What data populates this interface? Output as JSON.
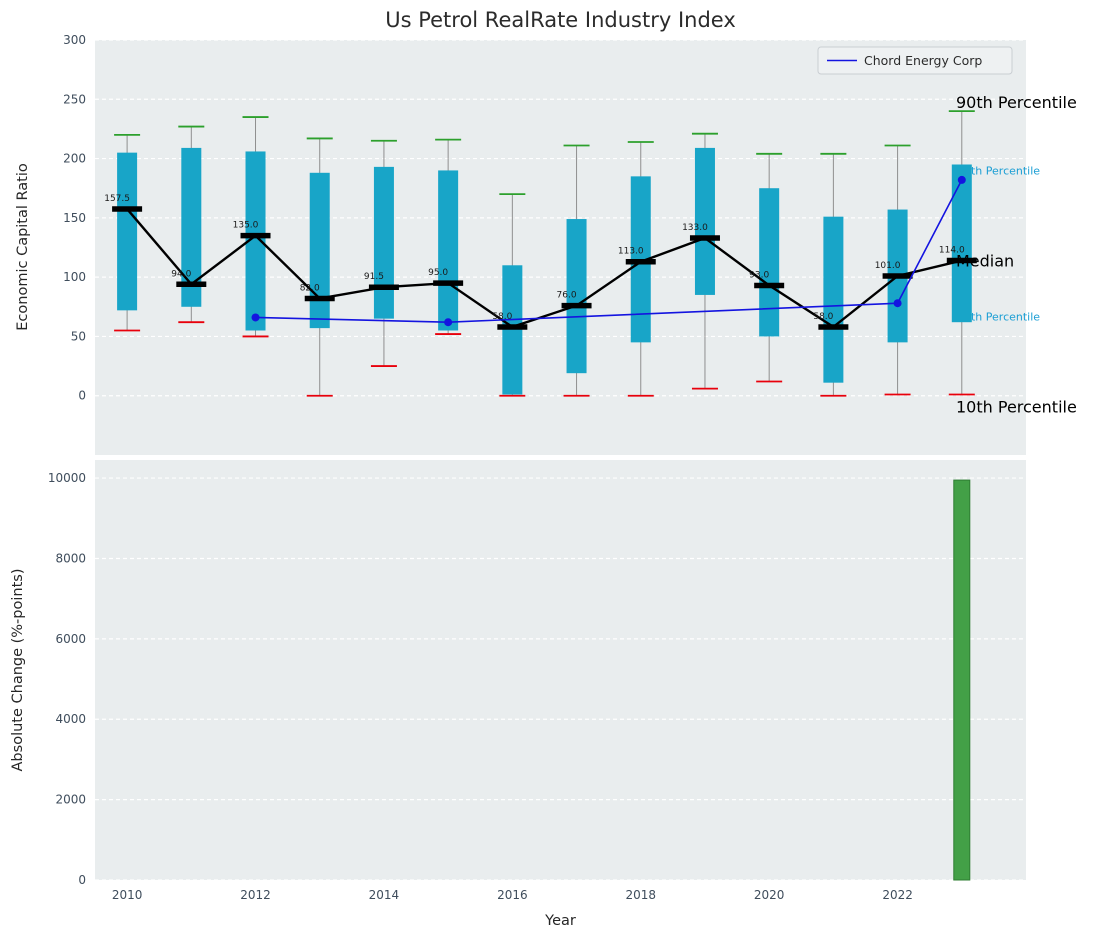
{
  "title": "Us Petrol RealRate Industry Index",
  "colors": {
    "axes_bg": "#e9edee",
    "grid": "#ffffff",
    "box": "#18a5c8",
    "cap90": "#2ca02c",
    "cap10": "#e8000b",
    "median": "#000000",
    "company": "#1414e0",
    "bar": "#43a047",
    "bar_edge": "#2e7d32",
    "whisker": "#8f8f8f",
    "tick": "#3f4d5c",
    "cyan_text": "#1a9ed4",
    "text": "#262626"
  },
  "chart_data": [
    {
      "type": "boxplot+line",
      "title": "Us Petrol RealRate Industry Index",
      "ylabel": "Economic Capital Ratio",
      "ylim": [
        -50,
        300
      ],
      "yticks": [
        0,
        50,
        100,
        150,
        200,
        250,
        300
      ],
      "xlim": [
        2009.5,
        2024
      ],
      "xticks": [
        2010,
        2012,
        2014,
        2016,
        2018,
        2020,
        2022
      ],
      "grid": true,
      "legend": "Chord Energy Corp",
      "legend_position": "upper right",
      "years": [
        2010,
        2011,
        2012,
        2013,
        2014,
        2015,
        2016,
        2017,
        2018,
        2019,
        2020,
        2021,
        2022,
        2023
      ],
      "p10": [
        55,
        62,
        50,
        0,
        25,
        52,
        0,
        0,
        0,
        6,
        12,
        0,
        1,
        1
      ],
      "p25": [
        72,
        75,
        55,
        57,
        65,
        55,
        1,
        19,
        45,
        85,
        50,
        11,
        45,
        62
      ],
      "median": [
        157.5,
        94,
        135,
        82,
        91.5,
        95,
        58,
        76,
        113,
        133,
        93,
        58,
        101,
        114
      ],
      "p75": [
        205,
        209,
        206,
        188,
        193,
        190,
        110,
        149,
        185,
        209,
        175,
        151,
        157,
        195
      ],
      "p90": [
        220,
        227,
        235,
        217,
        215,
        216,
        170,
        211,
        214,
        221,
        204,
        204,
        211,
        240
      ],
      "median_labels": [
        "157.5",
        "94.0",
        "135.0",
        "82.0",
        "91.5",
        "95.0",
        "58.0",
        "76.0",
        "113.0",
        "133.0",
        "93.0",
        "58.0",
        "101.0",
        "114.0"
      ],
      "series": [
        {
          "name": "Chord Energy Corp",
          "x": [
            2012,
            2015,
            2022,
            2023
          ],
          "y": [
            66,
            62,
            78,
            182
          ]
        }
      ],
      "right_annotations": [
        {
          "label": "90th Percentile",
          "value": 247,
          "style": "black"
        },
        {
          "label": "75th Percentile",
          "value": 190,
          "style": "cyan"
        },
        {
          "label": "Median",
          "value": 113,
          "style": "black"
        },
        {
          "label": "25th Percentile",
          "value": 67,
          "style": "cyan"
        },
        {
          "label": "10th Percentile",
          "value": -10,
          "style": "black"
        }
      ]
    },
    {
      "type": "bar",
      "ylabel": "Absolute Change (%-points)",
      "xlabel": "Year",
      "ylim": [
        0,
        10450
      ],
      "yticks": [
        0,
        2000,
        4000,
        6000,
        8000,
        10000
      ],
      "xlim": [
        2009.5,
        2024
      ],
      "xticks": [
        2010,
        2012,
        2014,
        2016,
        2018,
        2020,
        2022
      ],
      "grid": true,
      "x": [
        2023
      ],
      "values": [
        9950
      ]
    }
  ]
}
